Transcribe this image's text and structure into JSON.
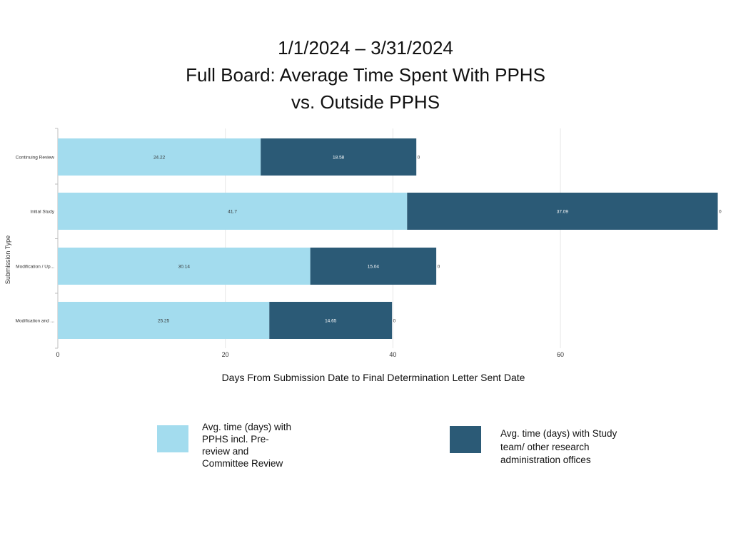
{
  "title_lines": [
    "1/1/2024 – 3/31/2024",
    "Full Board: Average Time Spent With PPHS",
    "vs. Outside PPHS"
  ],
  "chart_data": {
    "type": "bar",
    "orientation": "horizontal",
    "stacked": true,
    "categories": [
      "Continuing Review",
      "Initial Study",
      "Modification / Up...",
      "Modification and ..."
    ],
    "series": [
      {
        "name": "Avg. time (days) with PPHS incl. Pre-review and Committee Review",
        "values": [
          24.22,
          41.7,
          30.14,
          25.25
        ],
        "color": "#a3dcee"
      },
      {
        "name": "Avg. time (days) with Study team/ other research administration offices",
        "values": [
          18.58,
          37.09,
          15.04,
          14.65
        ],
        "color": "#2b5a76"
      }
    ],
    "end_labels": [
      "0",
      "0",
      "0",
      "0"
    ],
    "xlabel": "Days From Submission Date to Final Determination Letter Sent Date",
    "ylabel": "Submission Type",
    "xlim": [
      0,
      79
    ],
    "xticks": [
      0,
      20,
      40,
      60
    ],
    "grid": true,
    "legend_position": "bottom"
  },
  "legend": {
    "series1_lines": [
      "Avg. time (days) with",
      "PPHS incl. Pre-",
      "review and",
      "Committee Review"
    ],
    "series2_lines": [
      "Avg. time (days) with Study",
      "team/ other research",
      "administration offices"
    ]
  }
}
